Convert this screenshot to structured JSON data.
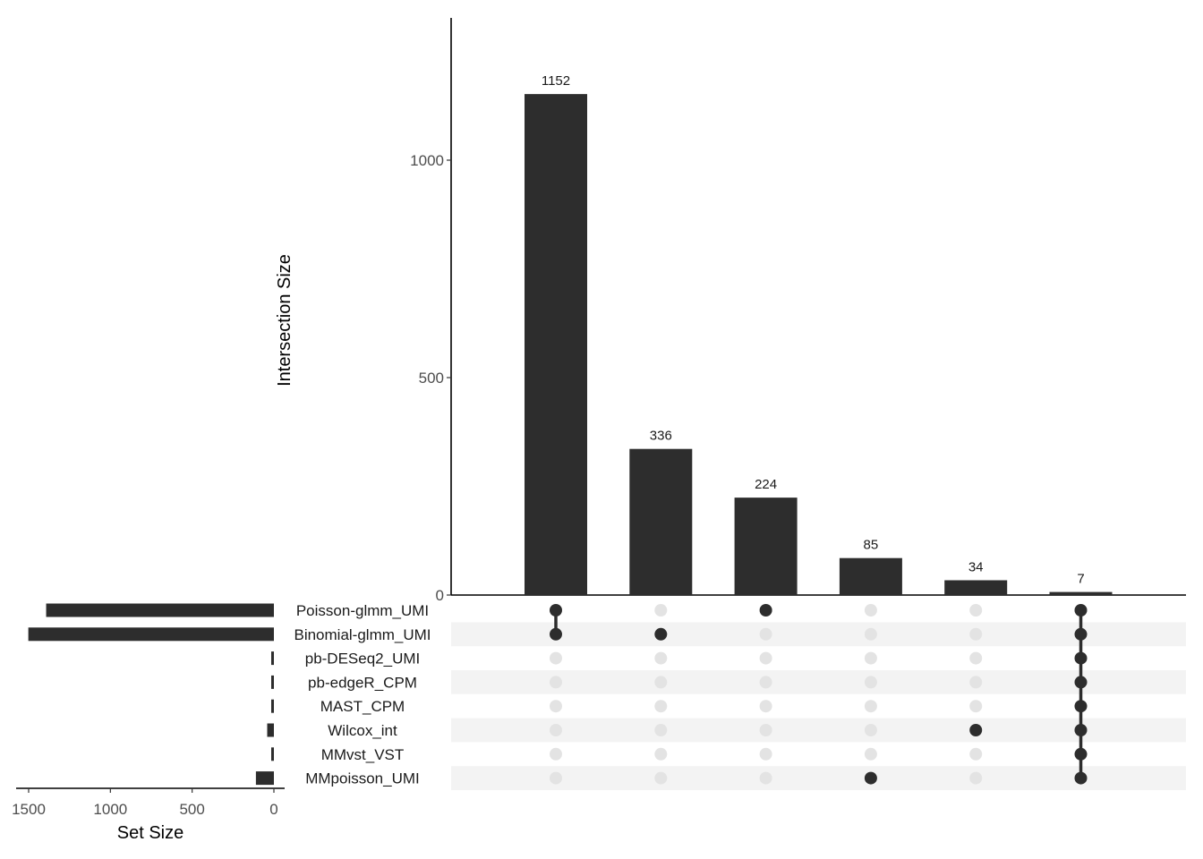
{
  "chart_data": {
    "type": "upset",
    "ylabel": "Intersection Size",
    "set_size_label": "Set Size",
    "intersection_ticks": [
      0,
      500,
      1000
    ],
    "intersection_ylim": [
      0,
      1320
    ],
    "set_size_ticks": [
      1500,
      1000,
      500,
      0
    ],
    "set_size_xlim": [
      0,
      1580
    ],
    "sets": [
      {
        "name": "Poisson-glmm_UMI",
        "size": 1393
      },
      {
        "name": "Binomial-glmm_UMI",
        "size": 1502
      },
      {
        "name": "pb-DESeq2_UMI",
        "size": 7
      },
      {
        "name": "pb-edgeR_CPM",
        "size": 7
      },
      {
        "name": "MAST_CPM",
        "size": 7
      },
      {
        "name": "Wilcox_int",
        "size": 41
      },
      {
        "name": "MMvst_VST",
        "size": 7
      },
      {
        "name": "MMpoisson_UMI",
        "size": 110
      }
    ],
    "intersections": [
      {
        "size": 1152,
        "label": "1152",
        "members": [
          "Poisson-glmm_UMI",
          "Binomial-glmm_UMI"
        ]
      },
      {
        "size": 336,
        "label": "336",
        "members": [
          "Binomial-glmm_UMI"
        ]
      },
      {
        "size": 224,
        "label": "224",
        "members": [
          "Poisson-glmm_UMI"
        ]
      },
      {
        "size": 85,
        "label": "85",
        "members": [
          "MMpoisson_UMI"
        ]
      },
      {
        "size": 34,
        "label": "34",
        "members": [
          "Wilcox_int"
        ]
      },
      {
        "size": 7,
        "label": "7",
        "members": [
          "Poisson-glmm_UMI",
          "Binomial-glmm_UMI",
          "pb-DESeq2_UMI",
          "pb-edgeR_CPM",
          "MAST_CPM",
          "Wilcox_int",
          "MMvst_VST",
          "MMpoisson_UMI"
        ]
      }
    ],
    "colors": {
      "bar": "#2d2d2d",
      "dot_active": "#2d2d2d",
      "dot_inactive": "#e3e3e3",
      "stripe": "#f3f3f3"
    },
    "grid": false
  }
}
